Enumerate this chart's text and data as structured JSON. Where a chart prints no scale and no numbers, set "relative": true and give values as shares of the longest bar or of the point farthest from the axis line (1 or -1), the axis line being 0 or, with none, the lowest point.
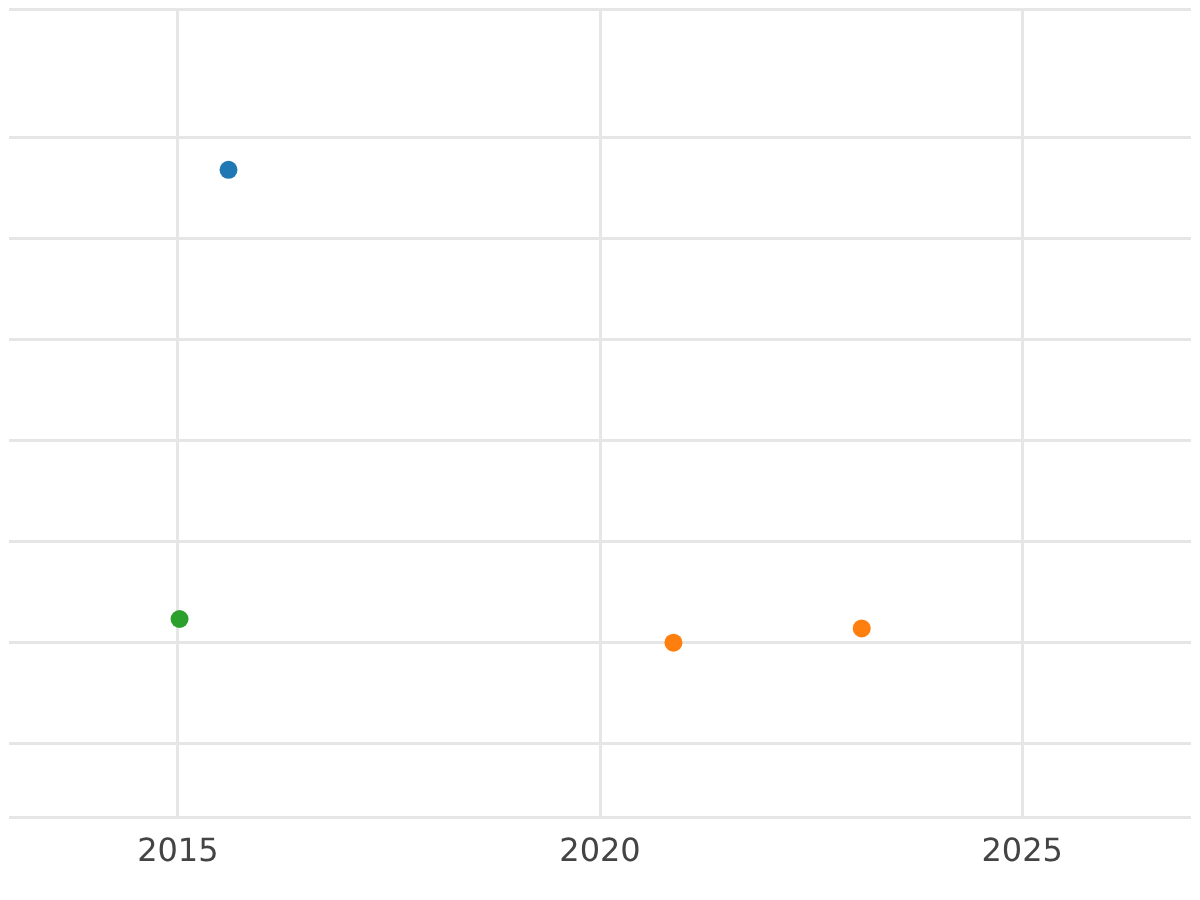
{
  "chart_data": {
    "type": "scatter",
    "relative": true,
    "xlim": [
      2013,
      2027
    ],
    "xticks": [
      2015,
      2020,
      2025
    ],
    "grid": true,
    "legend": false,
    "marker": "circle",
    "series": [
      {
        "color": "#1f77b4",
        "x": [
          2015.6
        ],
        "values": [
          1
        ]
      },
      {
        "color": "#ff7f0e",
        "x": [
          2020.87,
          2023.1
        ],
        "values": [
          0,
          0.03
        ]
      },
      {
        "color": "#2ca02c",
        "x": [
          2015.02
        ],
        "values": [
          0.05
        ]
      }
    ]
  }
}
